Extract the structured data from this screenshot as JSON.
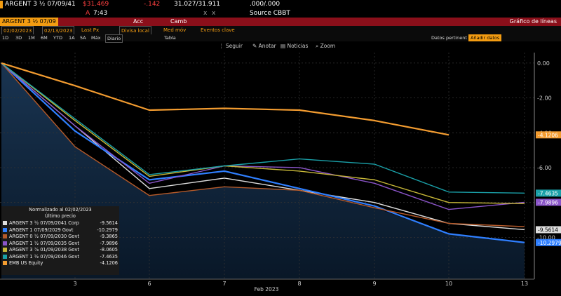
{
  "header": {
    "ticker": "ARGENT 3 ½  07/09/41",
    "price": "$31.469",
    "change": "-.142",
    "bid_ask": "31.027/31.911",
    "x_marks": "x",
    "yield": ".000/.000",
    "flag": "A",
    "time": "7:43",
    "source": "Source CBBT"
  },
  "menubar": {
    "left_box": "ARGENT 3 ½  07/09",
    "acc": "Acc",
    "camb": "Camb",
    "title": "Gráfico de líneas"
  },
  "controls": {
    "start_date": "02/02/2023",
    "end_date": "02/13/2023",
    "field": "Last Px",
    "currency": "Divisa local",
    "med_mov": "Med móv",
    "eventos": "Eventos clave"
  },
  "periods": {
    "items": [
      "1D",
      "3D",
      "1M",
      "6M",
      "YTD",
      "1A",
      "5A",
      "Máx"
    ],
    "freq": "Diario",
    "tabla": "Tabla",
    "datos": "Datos pertinent",
    "anadir": "Añadir datos"
  },
  "toolbar": {
    "seguir": "Seguir",
    "anotar": "Anotar",
    "noticias": "Noticias",
    "zoom": "Zoom"
  },
  "chart_data": {
    "type": "line",
    "x": [
      "2",
      "3",
      "6",
      "7",
      "8",
      "9",
      "10",
      "13"
    ],
    "xlabel": "Feb 2023",
    "ylim": [
      -12.4,
      0.6
    ],
    "yticks": [
      "0.00",
      "-2.00",
      "-4.00",
      "-6.00",
      "-8.00",
      "-10.00"
    ],
    "series": [
      {
        "name": "ARGENT 3 ½ 07/09/2041 Corp",
        "color": "#dddddd",
        "values": [
          0,
          -3.6,
          -7.2,
          -6.6,
          -7.3,
          -8.0,
          -9.2,
          -9.5614
        ]
      },
      {
        "name": "ARGENT 1 07/09/2029 Govt",
        "color": "#2f7fff",
        "values": [
          0,
          -3.9,
          -6.7,
          -6.2,
          -7.2,
          -8.2,
          -9.8,
          -10.2979
        ]
      },
      {
        "name": "ARGENT 0 ½ 07/09/2030 Govt",
        "color": "#b55a2a",
        "values": [
          0,
          -4.8,
          -7.6,
          -7.1,
          -7.3,
          -8.3,
          -9.2,
          -9.3865
        ]
      },
      {
        "name": "ARGENT 1 ½ 07/09/2035 Govt",
        "color": "#8b55c9",
        "values": [
          0,
          -3.6,
          -6.9,
          -5.9,
          -6.0,
          -6.9,
          -8.4,
          -7.9896
        ]
      },
      {
        "name": "ARGENT 3 ⅞ 01/09/2038 Govt",
        "color": "#c8b838",
        "values": [
          0,
          -3.3,
          -6.5,
          -5.9,
          -6.2,
          -6.7,
          -8.0,
          -8.0605
        ]
      },
      {
        "name": "ARGENT 1 ½ 07/09/2046 Govt",
        "color": "#1aa0a8",
        "values": [
          0,
          -3.2,
          -6.4,
          -5.9,
          -5.5,
          -5.8,
          -7.4,
          -7.4635
        ]
      },
      {
        "name": "EMB US Equity",
        "color": "#f39c30",
        "values": [
          0,
          -1.3,
          -2.7,
          -2.6,
          -2.7,
          -3.3,
          -4.1206,
          null
        ]
      }
    ],
    "value_labels": [
      "-4.1206",
      "-7.4635",
      "-7.9896",
      "-9.5614",
      "-10.2979"
    ]
  },
  "legend": {
    "title": "Normalizado al 02/02/2023",
    "subtitle": "Último precio",
    "items": [
      {
        "label": "ARGENT 3 ½  07/09/2041 Corp",
        "value": "-9.5614",
        "color": "#dddddd"
      },
      {
        "label": "ARGENT 1  07/09/2029 Govt",
        "value": "-10.2979",
        "color": "#2f7fff"
      },
      {
        "label": "ARGENT 0 ½  07/09/2030 Govt",
        "value": "-9.3865",
        "color": "#b55a2a"
      },
      {
        "label": "ARGENT 1 ½  07/09/2035 Govt",
        "value": "-7.9896",
        "color": "#8b55c9"
      },
      {
        "label": "ARGENT 3 ⅞  01/09/2038 Govt",
        "value": "-8.0605",
        "color": "#c8b838"
      },
      {
        "label": "ARGENT 1 ½  07/09/2046 Govt",
        "value": "-7.4635",
        "color": "#1aa0a8"
      },
      {
        "label": "EMB US Equity",
        "value": "-4.1206",
        "color": "#f39c30"
      }
    ]
  }
}
